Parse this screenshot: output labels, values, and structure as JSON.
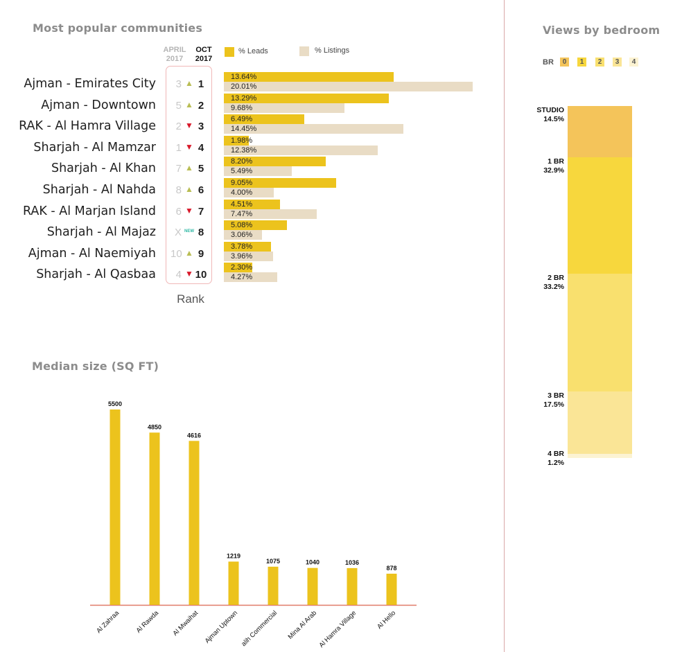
{
  "communities": {
    "title": "Most popular communities",
    "col_april": [
      "APRIL",
      "2017"
    ],
    "col_oct": [
      "OCT",
      "2017"
    ],
    "legend": [
      {
        "label": "% Leads",
        "color": "#ecc31d"
      },
      {
        "label": "% Listings",
        "color": "#e9dcc5"
      }
    ],
    "rank_caption": "Rank",
    "new_badge": "NEW",
    "rows": [
      {
        "name": "Ajman - Emirates City",
        "prev": "3",
        "trend": "up",
        "rank": "1",
        "leads": 13.64,
        "leads_label": "13.64%",
        "listings": 20.01,
        "listings_label": "20.01%"
      },
      {
        "name": "Ajman - Downtown",
        "prev": "5",
        "trend": "up",
        "rank": "2",
        "leads": 13.29,
        "leads_label": "13.29%",
        "listings": 9.68,
        "listings_label": "9.68%"
      },
      {
        "name": "RAK - Al Hamra Village",
        "prev": "2",
        "trend": "down",
        "rank": "3",
        "leads": 6.49,
        "leads_label": "6.49%",
        "listings": 14.45,
        "listings_label": "14.45%"
      },
      {
        "name": "Sharjah - Al Mamzar",
        "prev": "1",
        "trend": "down",
        "rank": "4",
        "leads": 1.98,
        "leads_label": "1.98%",
        "listings": 12.38,
        "listings_label": "12.38%"
      },
      {
        "name": "Sharjah - Al Khan",
        "prev": "7",
        "trend": "up",
        "rank": "5",
        "leads": 8.2,
        "leads_label": "8.20%",
        "listings": 5.49,
        "listings_label": "5.49%"
      },
      {
        "name": "Sharjah - Al Nahda",
        "prev": "8",
        "trend": "up",
        "rank": "6",
        "leads": 9.05,
        "leads_label": "9.05%",
        "listings": 4.0,
        "listings_label": "4.00%"
      },
      {
        "name": "RAK - Al Marjan Island",
        "prev": "6",
        "trend": "down",
        "rank": "7",
        "leads": 4.51,
        "leads_label": "4.51%",
        "listings": 7.47,
        "listings_label": "7.47%"
      },
      {
        "name": "Sharjah - Al Majaz",
        "prev": "X",
        "trend": "new",
        "rank": "8",
        "leads": 5.08,
        "leads_label": "5.08%",
        "listings": 3.06,
        "listings_label": "3.06%"
      },
      {
        "name": "Ajman - Al Naemiyah",
        "prev": "10",
        "trend": "up",
        "rank": "9",
        "leads": 3.78,
        "leads_label": "3.78%",
        "listings": 3.96,
        "listings_label": "3.96%"
      },
      {
        "name": "Sharjah -  Al Qasbaa",
        "prev": "4",
        "trend": "down",
        "rank": "10",
        "leads": 2.3,
        "leads_label": "2.30%",
        "listings": 4.27,
        "listings_label": "4.27%"
      }
    ]
  },
  "chart_data": [
    {
      "type": "bar",
      "orientation": "horizontal",
      "title": "Most popular communities",
      "categories": [
        "Ajman - Emirates City",
        "Ajman - Downtown",
        "RAK - Al Hamra Village",
        "Sharjah - Al Mamzar",
        "Sharjah - Al Khan",
        "Sharjah - Al Nahda",
        "RAK - Al Marjan Island",
        "Sharjah - Al Majaz",
        "Ajman - Al Naemiyah",
        "Sharjah -  Al Qasbaa"
      ],
      "series": [
        {
          "name": "% Leads",
          "values": [
            13.64,
            13.29,
            6.49,
            1.98,
            8.2,
            9.05,
            4.51,
            5.08,
            3.78,
            2.3
          ]
        },
        {
          "name": "% Listings",
          "values": [
            20.01,
            9.68,
            14.45,
            12.38,
            5.49,
            4.0,
            7.47,
            3.06,
            3.96,
            4.27
          ]
        }
      ],
      "legend": "top"
    },
    {
      "type": "bar",
      "title": "Median size (SQ FT)",
      "categories": [
        "Al Zahraa",
        "Al Rawda",
        "Al Mwaihat",
        "Ajman Uptown",
        "alih Commercial",
        "Mina Al Arab",
        "Al Hamra Village",
        "Al Hello"
      ],
      "values": [
        5500,
        4850,
        4616,
        1219,
        1075,
        1040,
        1036,
        878
      ],
      "value_labels": [
        "5500",
        "4850",
        "4616",
        "1219",
        "1075",
        "1040",
        "1036",
        "878"
      ],
      "ylim": [
        0,
        5500
      ],
      "color": "#ecc31d",
      "axis_color": "#e07b68",
      "grid": false
    },
    {
      "type": "bar",
      "orientation": "stacked-vertical",
      "title": "Views by bedroom",
      "legend_prefix": "BR",
      "legend": [
        "0",
        "1",
        "2",
        "3",
        "4"
      ],
      "categories": [
        "STUDIO",
        "1 BR",
        "2 BR",
        "3 BR",
        "4 BR"
      ],
      "values": [
        14.5,
        32.9,
        33.2,
        17.5,
        1.2
      ],
      "value_labels": [
        "14.5%",
        "32.9%",
        "33.2%",
        "17.5%",
        "1.2%"
      ],
      "colors": [
        "#f4c45a",
        "#f7d73d",
        "#f9e06e",
        "#fae596",
        "#fcf3d2"
      ]
    }
  ]
}
